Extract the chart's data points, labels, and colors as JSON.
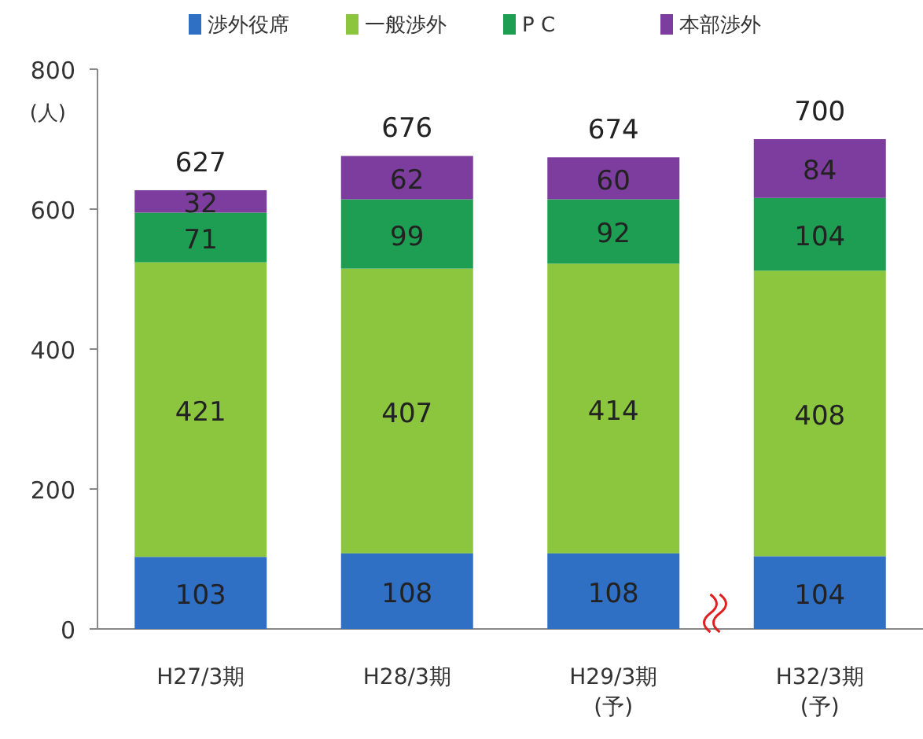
{
  "chart_data": {
    "type": "bar",
    "stacked": true,
    "ylabel": "(人)",
    "categories": [
      "H27/3期",
      "H28/3期",
      "H29/3期\n(予)",
      "H32/3期\n(予)"
    ],
    "series": [
      {
        "name": "渉外役席",
        "color": "#2f6fc4",
        "values": [
          103,
          108,
          108,
          104
        ]
      },
      {
        "name": "一般渉外",
        "color": "#8cc63f",
        "values": [
          421,
          407,
          414,
          408
        ]
      },
      {
        "name": "P C",
        "color": "#1e9e52",
        "values": [
          71,
          99,
          92,
          104
        ]
      },
      {
        "name": "本部渉外",
        "color": "#7d3d9e",
        "values": [
          32,
          62,
          60,
          84
        ]
      }
    ],
    "totals": [
      "627",
      "676",
      "674",
      "700"
    ],
    "data_labels": true,
    "ylim": [
      0,
      800
    ],
    "yticks": [
      0,
      200,
      400,
      600,
      800
    ],
    "legend": "top",
    "grid": false
  }
}
